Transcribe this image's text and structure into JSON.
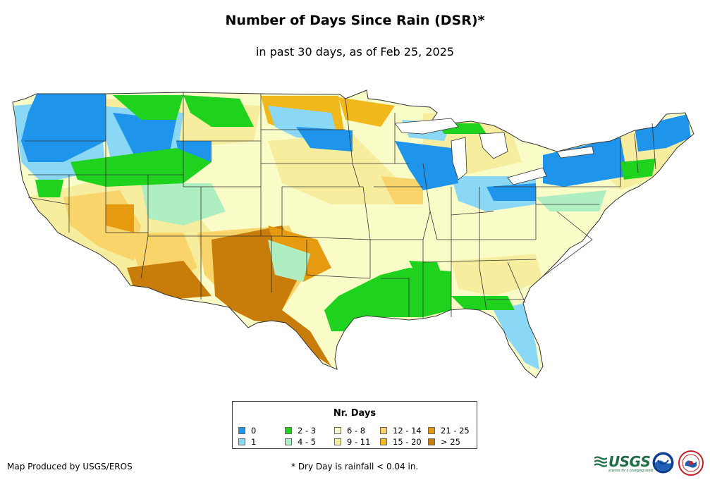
{
  "title": "Number of Days Since Rain (DSR)*",
  "subtitle": "in past 30 days, as of Feb 25, 2025",
  "legend": {
    "title": "Nr. Days",
    "items": [
      {
        "label": "0",
        "color": "#1e95ea"
      },
      {
        "label": "1",
        "color": "#8ad8f6"
      },
      {
        "label": "2 - 3",
        "color": "#1ed21e"
      },
      {
        "label": "4 - 5",
        "color": "#aeeec0"
      },
      {
        "label": "6 - 8",
        "color": "#fafcc8"
      },
      {
        "label": "9 - 11",
        "color": "#f6ee9e"
      },
      {
        "label": "12 - 14",
        "color": "#f8d46a"
      },
      {
        "label": "15 - 20",
        "color": "#f0b81a"
      },
      {
        "label": "21 - 25",
        "color": "#e69a10"
      },
      {
        "label": "> 25",
        "color": "#c87c0a"
      }
    ]
  },
  "footer": {
    "produced_by": "Map Produced by USGS/EROS",
    "note": "* Dry Day is rainfall < 0.04 in."
  },
  "logos": {
    "usgs": "USGS",
    "usgs_tagline": "science for a changing world"
  },
  "icons": [
    "usgs-logo-icon",
    "noaa-logo-icon",
    "nws-logo-icon"
  ]
}
